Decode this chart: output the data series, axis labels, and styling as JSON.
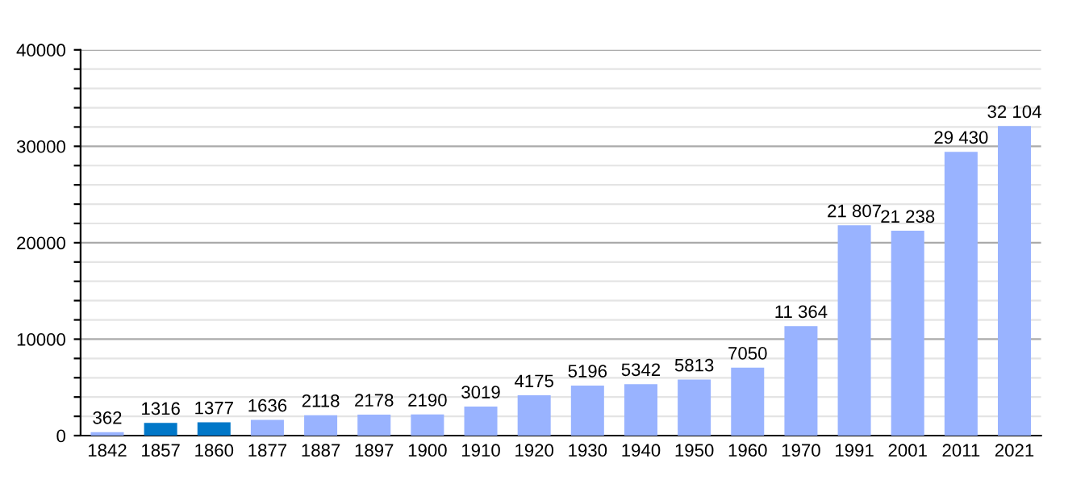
{
  "chart_data": {
    "type": "bar",
    "categories": [
      "1842",
      "1857",
      "1860",
      "1877",
      "1887",
      "1897",
      "1900",
      "1910",
      "1920",
      "1930",
      "1940",
      "1950",
      "1960",
      "1970",
      "1991",
      "2001",
      "2011",
      "2021"
    ],
    "values": [
      362,
      1316,
      1377,
      1636,
      2118,
      2178,
      2190,
      3019,
      4175,
      5196,
      5342,
      5813,
      7050,
      11364,
      21807,
      21238,
      29430,
      32104
    ],
    "colors": [
      "#99b3ff",
      "#0077c8",
      "#0077c8",
      "#99b3ff",
      "#99b3ff",
      "#99b3ff",
      "#99b3ff",
      "#99b3ff",
      "#99b3ff",
      "#99b3ff",
      "#99b3ff",
      "#99b3ff",
      "#99b3ff",
      "#99b3ff",
      "#99b3ff",
      "#99b3ff",
      "#99b3ff",
      "#99b3ff"
    ],
    "value_labels": [
      "362",
      "1316",
      "1377",
      "1636",
      "2118",
      "2178",
      "2190",
      "3019",
      "4175",
      "5196",
      "5342",
      "5813",
      "7050",
      "11 364",
      "21 807",
      "21 238",
      "29 430",
      "32 104"
    ],
    "ylim": [
      0,
      40000
    ],
    "yticks": [
      0,
      {
        "value": 2000,
        "label": null
      },
      {
        "value": 4000,
        "label": null
      },
      {
        "value": 6000,
        "label": null
      },
      {
        "value": 8000,
        "label": null
      },
      10000,
      {
        "value": 12000,
        "label": null
      },
      {
        "value": 14000,
        "label": null
      },
      {
        "value": 16000,
        "label": null
      },
      {
        "value": 18000,
        "label": null
      },
      20000,
      {
        "value": 22000,
        "label": null
      },
      {
        "value": 24000,
        "label": null
      },
      {
        "value": 26000,
        "label": null
      },
      {
        "value": 28000,
        "label": null
      },
      30000,
      {
        "value": 32000,
        "label": null
      },
      {
        "value": 34000,
        "label": null
      },
      {
        "value": 36000,
        "label": null
      },
      {
        "value": 38000,
        "label": null
      },
      40000
    ],
    "grid": "y"
  }
}
